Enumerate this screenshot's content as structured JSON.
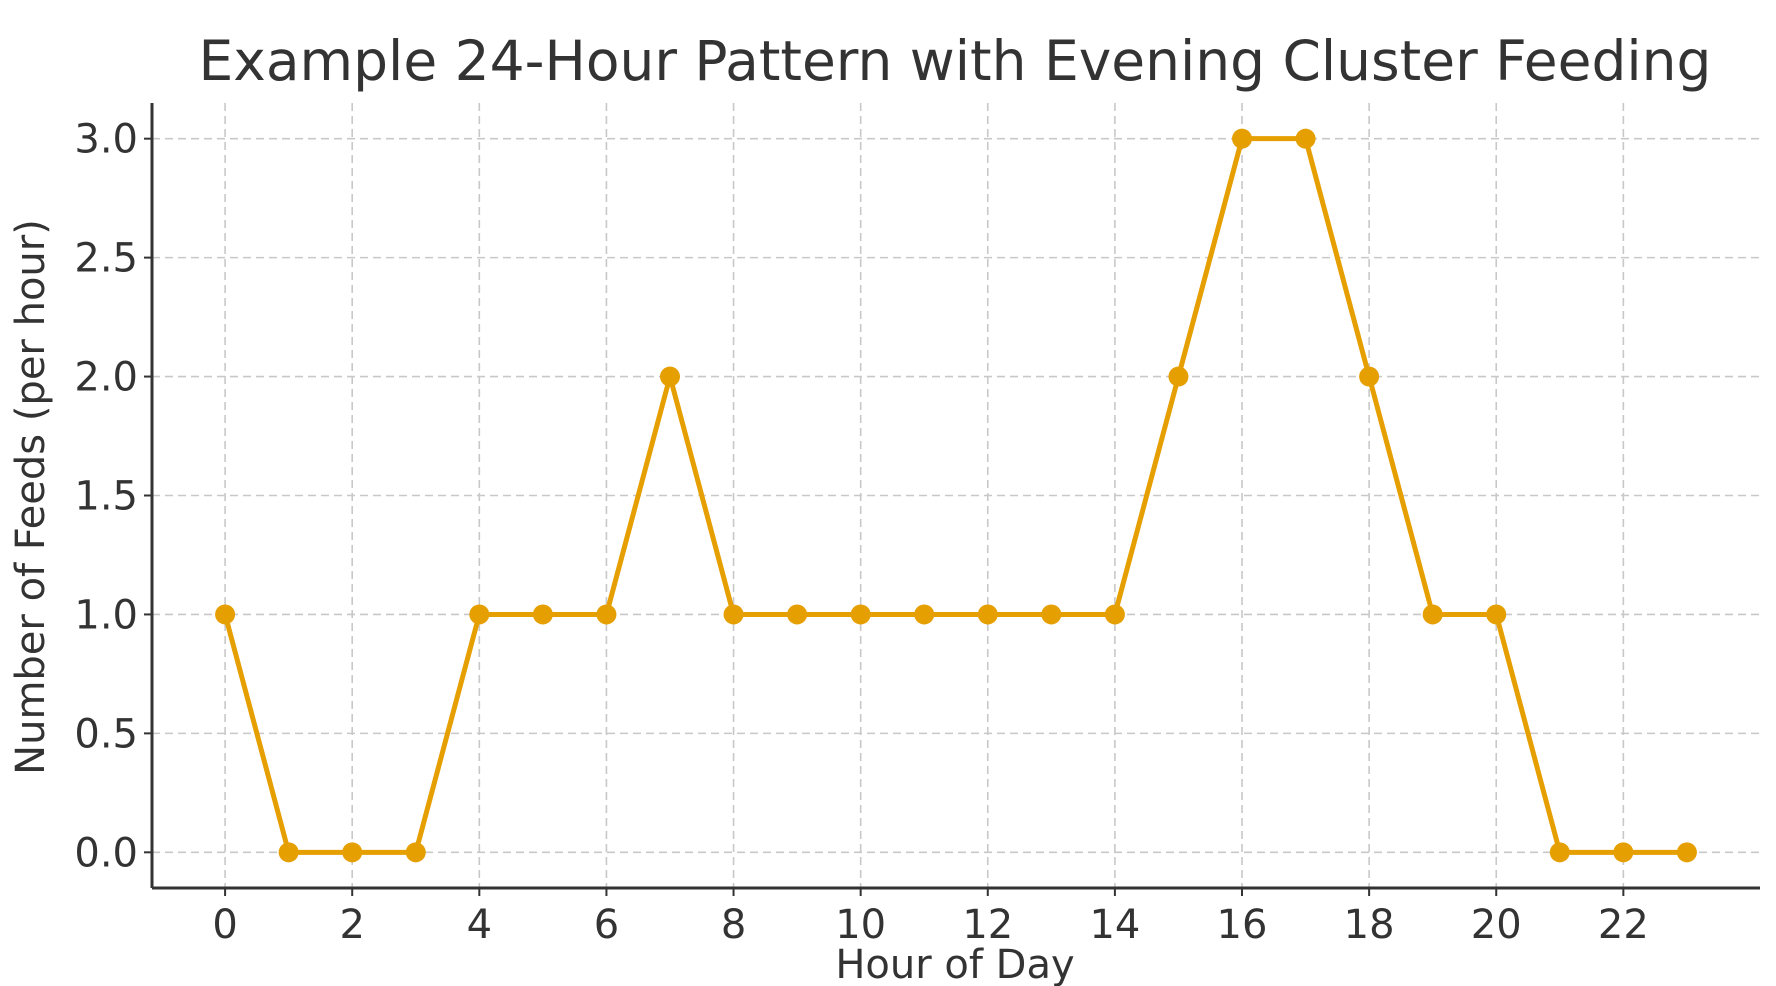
{
  "chart_data": {
    "type": "line",
    "title": "Example 24-Hour Pattern with Evening Cluster Feeding",
    "xlabel": "Hour of Day",
    "ylabel": "Number of Feeds (per hour)",
    "x": [
      0,
      1,
      2,
      3,
      4,
      5,
      6,
      7,
      8,
      9,
      10,
      11,
      12,
      13,
      14,
      15,
      16,
      17,
      18,
      19,
      20,
      21,
      22,
      23
    ],
    "series": [
      {
        "values": [
          1,
          0,
          0,
          0,
          1,
          1,
          1,
          2,
          1,
          1,
          1,
          1,
          1,
          1,
          1,
          2,
          3,
          3,
          2,
          1,
          1,
          0,
          0,
          0
        ],
        "color": "#e69f00",
        "marker": "circle"
      }
    ],
    "xticks": [
      0,
      2,
      4,
      6,
      8,
      10,
      12,
      14,
      16,
      18,
      20,
      22
    ],
    "xtick_labels": [
      "0",
      "2",
      "4",
      "6",
      "8",
      "10",
      "12",
      "14",
      "16",
      "18",
      "20",
      "22"
    ],
    "yticks": [
      0.0,
      0.5,
      1.0,
      1.5,
      2.0,
      2.5,
      3.0
    ],
    "ytick_labels": [
      "0.0",
      "0.5",
      "1.0",
      "1.5",
      "2.0",
      "2.5",
      "3.0"
    ],
    "xlim": [
      -1.15,
      24.15
    ],
    "ylim": [
      -0.15,
      3.15
    ],
    "grid": true,
    "grid_style": "dashed",
    "legend": "none"
  }
}
